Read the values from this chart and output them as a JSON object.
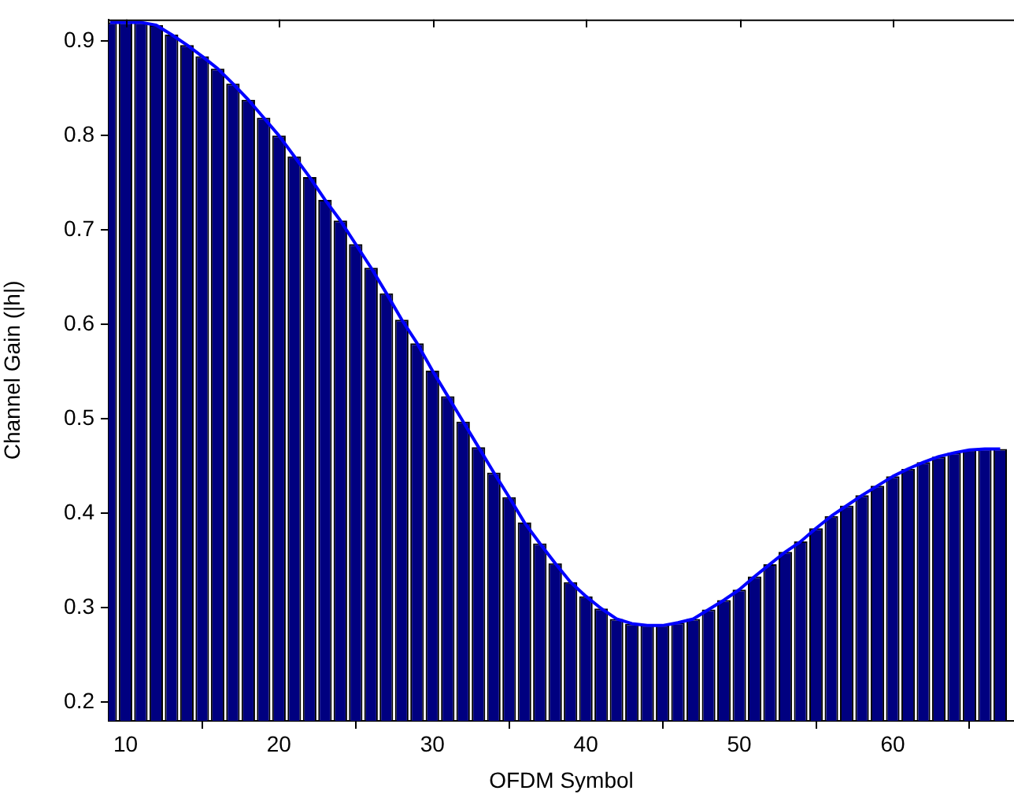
{
  "chart_data": {
    "type": "bar",
    "xlabel": "OFDM Symbol",
    "ylabel": "Channel Gain (|h|)",
    "x": [
      9,
      10,
      11,
      12,
      13,
      14,
      15,
      16,
      17,
      18,
      19,
      20,
      21,
      22,
      23,
      24,
      25,
      26,
      27,
      28,
      29,
      30,
      31,
      32,
      33,
      34,
      35,
      36,
      37,
      38,
      39,
      40,
      41,
      42,
      43,
      44,
      45,
      46,
      47,
      48,
      49,
      50,
      51,
      52,
      53,
      54,
      55,
      56,
      57,
      58,
      59,
      60,
      61,
      62,
      63,
      64,
      65,
      66,
      67
    ],
    "series": [
      {
        "color": "#000080",
        "values": [
          0.92,
          0.92,
          0.92,
          0.917,
          0.907,
          0.896,
          0.884,
          0.871,
          0.855,
          0.838,
          0.819,
          0.8,
          0.778,
          0.756,
          0.732,
          0.71,
          0.685,
          0.66,
          0.633,
          0.605,
          0.58,
          0.551,
          0.524,
          0.497,
          0.47,
          0.443,
          0.417,
          0.39,
          0.368,
          0.347,
          0.327,
          0.312,
          0.299,
          0.288,
          0.283,
          0.281,
          0.281,
          0.284,
          0.288,
          0.298,
          0.308,
          0.319,
          0.333,
          0.346,
          0.359,
          0.37,
          0.384,
          0.397,
          0.408,
          0.419,
          0.429,
          0.439,
          0.447,
          0.454,
          0.46,
          0.464,
          0.467,
          0.468,
          0.468
        ]
      },
      {
        "type": "line",
        "color": "#0000ff",
        "values": [
          0.92,
          0.92,
          0.92,
          0.917,
          0.907,
          0.896,
          0.884,
          0.871,
          0.855,
          0.838,
          0.819,
          0.8,
          0.778,
          0.756,
          0.732,
          0.71,
          0.685,
          0.66,
          0.633,
          0.605,
          0.58,
          0.551,
          0.524,
          0.497,
          0.47,
          0.443,
          0.417,
          0.39,
          0.368,
          0.347,
          0.327,
          0.312,
          0.299,
          0.288,
          0.283,
          0.281,
          0.281,
          0.284,
          0.288,
          0.298,
          0.308,
          0.319,
          0.333,
          0.346,
          0.359,
          0.37,
          0.384,
          0.397,
          0.408,
          0.419,
          0.429,
          0.439,
          0.447,
          0.454,
          0.46,
          0.464,
          0.467,
          0.468,
          0.468
        ]
      }
    ],
    "xlim": [
      8.9,
      67.9
    ],
    "ylim": [
      0.18,
      0.923
    ],
    "xticks": [
      10,
      20,
      30,
      40,
      50,
      60
    ],
    "yticks": [
      0.2,
      0.3,
      0.4,
      0.5,
      0.6,
      0.7,
      0.8,
      0.9
    ],
    "marker": "none"
  }
}
